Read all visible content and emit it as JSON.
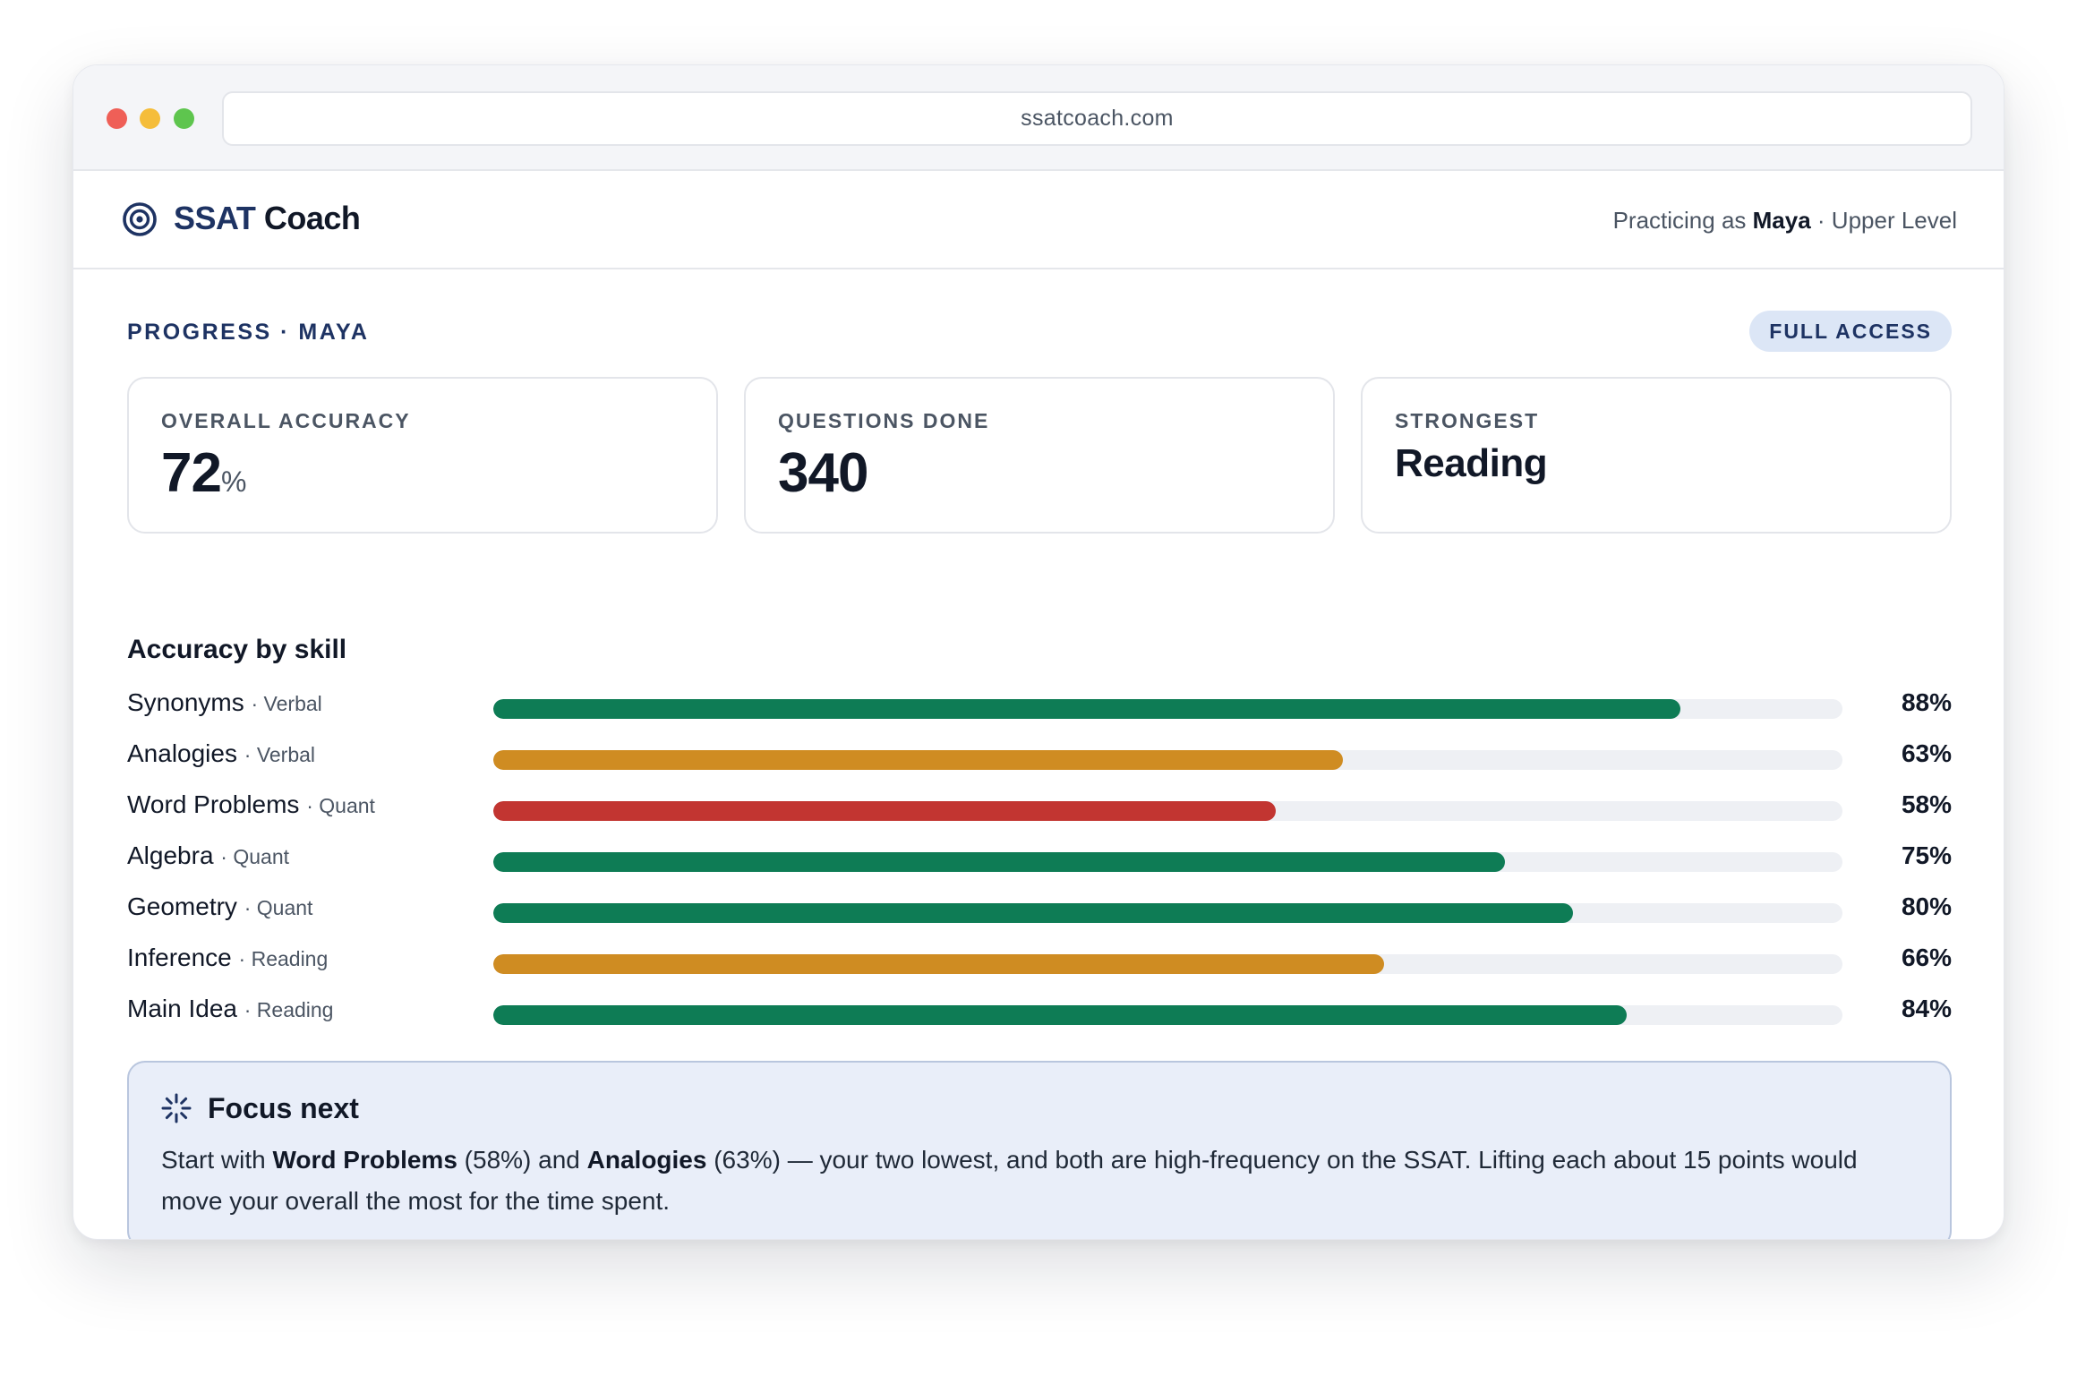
{
  "browser": {
    "url": "ssatcoach.com"
  },
  "app": {
    "brand_primary": "SSAT",
    "brand_secondary": "Coach",
    "practicing_prefix": "Practicing as",
    "user_name": "Maya",
    "practicing_suffix": "· Upper Level"
  },
  "progress": {
    "section_label": "PROGRESS · MAYA",
    "badge": "FULL ACCESS"
  },
  "stats": [
    {
      "label": "OVERALL ACCURACY",
      "value": "72",
      "unit": "%"
    },
    {
      "label": "QUESTIONS DONE",
      "value": "340"
    },
    {
      "label": "STRONGEST",
      "value": "Reading"
    }
  ],
  "skills": {
    "title": "Accuracy by skill",
    "items": [
      {
        "name": "Synonyms",
        "category": "· Verbal",
        "percent": 88,
        "label": "88%",
        "color": "#0e7c55"
      },
      {
        "name": "Analogies",
        "category": "· Verbal",
        "percent": 63,
        "label": "63%",
        "color": "#cf8c22"
      },
      {
        "name": "Word Problems",
        "category": "· Quant",
        "percent": 58,
        "label": "58%",
        "color": "#c23531"
      },
      {
        "name": "Algebra",
        "category": "· Quant",
        "percent": 75,
        "label": "75%",
        "color": "#0e7c55"
      },
      {
        "name": "Geometry",
        "category": "· Quant",
        "percent": 80,
        "label": "80%",
        "color": "#0e7c55"
      },
      {
        "name": "Inference",
        "category": "· Reading",
        "percent": 66,
        "label": "66%",
        "color": "#cf8c22"
      },
      {
        "name": "Main Idea",
        "category": "· Reading",
        "percent": 84,
        "label": "84%",
        "color": "#0e7c55"
      }
    ]
  },
  "focus": {
    "icon": "sparkle-loader-icon",
    "title": "Focus next",
    "t1": "Start with",
    "b1": "Word Problems",
    "t2": "(58%) and",
    "b2": "Analogies",
    "t3": "(63%) — your two lowest, and both are high-frequency on the SSAT. Lifting each about 15 points would move your overall the most for the time spent."
  },
  "colors": {
    "brand": "#1e3363",
    "good": "#0e7c55",
    "warn": "#cf8c22",
    "bad": "#c23531"
  }
}
